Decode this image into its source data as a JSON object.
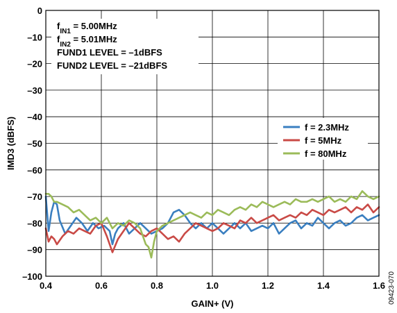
{
  "chart_data": {
    "type": "line",
    "xlabel": "GAIN+ (V)",
    "ylabel": "IMD3 (dBFS)",
    "xlim": [
      0.4,
      1.6
    ],
    "ylim": [
      -100,
      0
    ],
    "x_ticks": [
      "0.4",
      "0.6",
      "0.8",
      "1.0",
      "1.2",
      "1.4",
      "1.6"
    ],
    "y_ticks": [
      "0",
      "–10",
      "–20",
      "–30",
      "–40",
      "–50",
      "–60",
      "–70",
      "–80",
      "–90",
      "–100"
    ],
    "grid": true,
    "legend_position": "right-middle",
    "annotations": [
      {
        "base": "f",
        "sub": "IN1",
        "rest": " = 5.00MHz"
      },
      {
        "base": "f",
        "sub": "IN2",
        "rest": " = 5.01MHz"
      },
      {
        "base": "FUND1 LEVEL = –1dBFS",
        "sub": "",
        "rest": ""
      },
      {
        "base": "FUND2 LEVEL = –21dBFS",
        "sub": "",
        "rest": ""
      }
    ],
    "figure_id": "09423-070",
    "series": [
      {
        "name": "f = 2.3MHz",
        "color": "#3a7fc0",
        "x": [
          0.4,
          0.41,
          0.42,
          0.43,
          0.44,
          0.45,
          0.47,
          0.49,
          0.51,
          0.53,
          0.55,
          0.57,
          0.59,
          0.61,
          0.63,
          0.64,
          0.65,
          0.66,
          0.68,
          0.7,
          0.72,
          0.74,
          0.76,
          0.78,
          0.8,
          0.82,
          0.84,
          0.86,
          0.88,
          0.9,
          0.92,
          0.94,
          0.96,
          0.98,
          1.0,
          1.02,
          1.04,
          1.06,
          1.08,
          1.1,
          1.12,
          1.14,
          1.16,
          1.18,
          1.2,
          1.22,
          1.24,
          1.26,
          1.28,
          1.3,
          1.32,
          1.34,
          1.36,
          1.38,
          1.4,
          1.42,
          1.44,
          1.46,
          1.48,
          1.5,
          1.52,
          1.54,
          1.56,
          1.58,
          1.6
        ],
        "values": [
          -70,
          -83,
          -76,
          -72,
          -73,
          -79,
          -84,
          -81,
          -78,
          -80,
          -83,
          -80,
          -82,
          -81,
          -83,
          -88,
          -84,
          -82,
          -80,
          -84,
          -82,
          -80,
          -82,
          -84,
          -83,
          -82,
          -80,
          -76,
          -75,
          -77,
          -80,
          -82,
          -80,
          -82,
          -80,
          -82,
          -84,
          -82,
          -80,
          -82,
          -80,
          -83,
          -82,
          -81,
          -82,
          -80,
          -84,
          -82,
          -80,
          -79,
          -82,
          -80,
          -81,
          -78,
          -80,
          -82,
          -80,
          -79,
          -81,
          -80,
          -78,
          -77,
          -79,
          -78,
          -77
        ]
      },
      {
        "name": "f = 5MHz",
        "color": "#c94a46",
        "x": [
          0.4,
          0.41,
          0.42,
          0.43,
          0.44,
          0.46,
          0.48,
          0.5,
          0.52,
          0.54,
          0.56,
          0.58,
          0.6,
          0.62,
          0.64,
          0.66,
          0.68,
          0.7,
          0.72,
          0.74,
          0.76,
          0.78,
          0.8,
          0.82,
          0.84,
          0.86,
          0.88,
          0.9,
          0.92,
          0.94,
          0.96,
          0.98,
          1.0,
          1.02,
          1.04,
          1.06,
          1.08,
          1.1,
          1.12,
          1.14,
          1.16,
          1.18,
          1.2,
          1.22,
          1.24,
          1.26,
          1.28,
          1.3,
          1.32,
          1.34,
          1.36,
          1.38,
          1.4,
          1.42,
          1.44,
          1.46,
          1.48,
          1.5,
          1.52,
          1.54,
          1.56,
          1.58,
          1.6
        ],
        "values": [
          -82,
          -87,
          -85,
          -86,
          -88,
          -85,
          -83,
          -84,
          -82,
          -83,
          -84,
          -81,
          -80,
          -85,
          -91,
          -86,
          -83,
          -80,
          -82,
          -84,
          -85,
          -83,
          -82,
          -84,
          -86,
          -85,
          -87,
          -84,
          -82,
          -80,
          -81,
          -82,
          -83,
          -82,
          -80,
          -81,
          -82,
          -79,
          -80,
          -78,
          -80,
          -79,
          -78,
          -77,
          -79,
          -78,
          -77,
          -78,
          -76,
          -77,
          -75,
          -76,
          -77,
          -75,
          -76,
          -75,
          -74,
          -76,
          -74,
          -75,
          -73,
          -76,
          -74
        ]
      },
      {
        "name": "f = 80MHz",
        "color": "#9bbb59",
        "x": [
          0.4,
          0.41,
          0.42,
          0.43,
          0.44,
          0.46,
          0.48,
          0.5,
          0.52,
          0.54,
          0.56,
          0.58,
          0.6,
          0.62,
          0.64,
          0.66,
          0.68,
          0.7,
          0.72,
          0.74,
          0.75,
          0.76,
          0.77,
          0.78,
          0.79,
          0.8,
          0.82,
          0.84,
          0.86,
          0.88,
          0.9,
          0.92,
          0.94,
          0.96,
          0.98,
          1.0,
          1.02,
          1.04,
          1.06,
          1.08,
          1.1,
          1.12,
          1.14,
          1.16,
          1.18,
          1.2,
          1.22,
          1.24,
          1.26,
          1.28,
          1.3,
          1.32,
          1.34,
          1.36,
          1.38,
          1.4,
          1.42,
          1.44,
          1.46,
          1.48,
          1.5,
          1.52,
          1.54,
          1.56,
          1.58,
          1.6
        ],
        "values": [
          -69,
          -69,
          -70,
          -72,
          -72,
          -73,
          -74,
          -76,
          -75,
          -77,
          -79,
          -78,
          -80,
          -78,
          -82,
          -80,
          -81,
          -79,
          -80,
          -82,
          -85,
          -88,
          -89,
          -93,
          -87,
          -83,
          -81,
          -80,
          -79,
          -78,
          -77,
          -76,
          -77,
          -78,
          -76,
          -77,
          -75,
          -76,
          -77,
          -75,
          -74,
          -75,
          -73,
          -74,
          -72,
          -73,
          -74,
          -73,
          -72,
          -73,
          -71,
          -72,
          -72,
          -71,
          -72,
          -71,
          -70,
          -72,
          -71,
          -72,
          -70,
          -71,
          -68,
          -70,
          -71,
          -70
        ]
      }
    ]
  }
}
